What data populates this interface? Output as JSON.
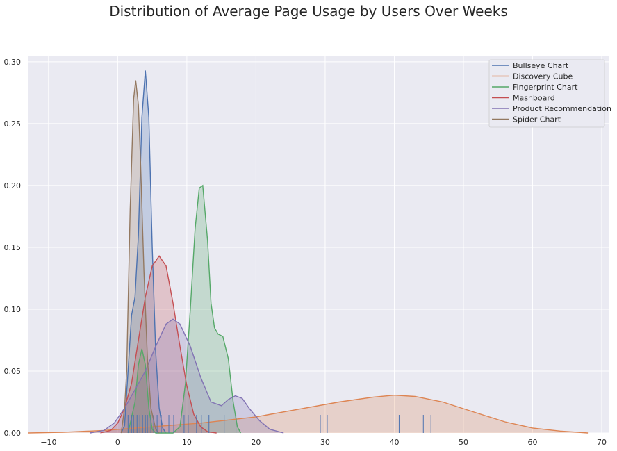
{
  "chart_data": {
    "type": "area",
    "title": "Distribution of Average Page Usage by Users Over Weeks",
    "xlabel": "",
    "ylabel": "",
    "xlim": [
      -13,
      71
    ],
    "ylim": [
      0,
      0.305
    ],
    "x_ticks": [
      -10,
      0,
      10,
      20,
      30,
      40,
      50,
      60,
      70
    ],
    "x_tick_labels": [
      "−10",
      "0",
      "10",
      "20",
      "30",
      "40",
      "50",
      "60",
      "70"
    ],
    "y_ticks": [
      0.0,
      0.05,
      0.1,
      0.15,
      0.2,
      0.25,
      0.3
    ],
    "y_tick_labels": [
      "0.00",
      "0.05",
      "0.10",
      "0.15",
      "0.20",
      "0.25",
      "0.30"
    ],
    "grid": true,
    "legend_position": "top-right",
    "series": [
      {
        "name": "Bullseye Chart",
        "color": "#4c72b0",
        "points": [
          [
            0.5,
            0
          ],
          [
            1,
            0.006
          ],
          [
            1.5,
            0.05
          ],
          [
            2,
            0.095
          ],
          [
            2.5,
            0.11
          ],
          [
            3,
            0.16
          ],
          [
            3.5,
            0.255
          ],
          [
            4,
            0.293
          ],
          [
            4.5,
            0.255
          ],
          [
            5,
            0.15
          ],
          [
            5.5,
            0.065
          ],
          [
            6,
            0.02
          ],
          [
            6.5,
            0.004
          ],
          [
            7,
            0
          ]
        ]
      },
      {
        "name": "Discovery Cube",
        "color": "#dd8452",
        "points": [
          [
            -13,
            0
          ],
          [
            -8,
            0.0005
          ],
          [
            -2,
            0.002
          ],
          [
            5,
            0.005
          ],
          [
            12,
            0.008
          ],
          [
            20,
            0.013
          ],
          [
            26,
            0.019
          ],
          [
            32,
            0.025
          ],
          [
            37,
            0.029
          ],
          [
            40,
            0.0305
          ],
          [
            43,
            0.0295
          ],
          [
            47,
            0.025
          ],
          [
            52,
            0.016
          ],
          [
            56,
            0.009
          ],
          [
            60,
            0.004
          ],
          [
            64,
            0.0015
          ],
          [
            68,
            0
          ]
        ]
      },
      {
        "name": "Fingerprint Chart",
        "color": "#55a868",
        "points": [
          [
            1.5,
            0
          ],
          [
            2.5,
            0.025
          ],
          [
            3,
            0.055
          ],
          [
            3.5,
            0.068
          ],
          [
            4,
            0.055
          ],
          [
            4.5,
            0.02
          ],
          [
            5,
            0.003
          ],
          [
            5.5,
            0
          ],
          [
            8,
            0
          ],
          [
            9,
            0.005
          ],
          [
            9.8,
            0.04
          ],
          [
            10.5,
            0.1
          ],
          [
            11.2,
            0.165
          ],
          [
            11.8,
            0.198
          ],
          [
            12.3,
            0.2
          ],
          [
            13,
            0.155
          ],
          [
            13.5,
            0.105
          ],
          [
            14,
            0.085
          ],
          [
            14.5,
            0.08
          ],
          [
            15.2,
            0.078
          ],
          [
            16,
            0.06
          ],
          [
            16.7,
            0.025
          ],
          [
            17.3,
            0.005
          ],
          [
            17.8,
            0
          ]
        ]
      },
      {
        "name": "Mashboard",
        "color": "#c44e52",
        "points": [
          [
            -2.5,
            0
          ],
          [
            -1,
            0.002
          ],
          [
            0,
            0.008
          ],
          [
            1,
            0.02
          ],
          [
            2,
            0.04
          ],
          [
            3,
            0.075
          ],
          [
            4,
            0.11
          ],
          [
            5,
            0.135
          ],
          [
            6,
            0.143
          ],
          [
            7,
            0.135
          ],
          [
            8,
            0.105
          ],
          [
            9,
            0.07
          ],
          [
            10,
            0.038
          ],
          [
            11,
            0.015
          ],
          [
            12,
            0.005
          ],
          [
            13,
            0.001
          ],
          [
            14.3,
            0
          ]
        ]
      },
      {
        "name": "Product Recommendation",
        "color": "#8172b3",
        "points": [
          [
            -4,
            0
          ],
          [
            -2,
            0.002
          ],
          [
            -0.5,
            0.008
          ],
          [
            1,
            0.02
          ],
          [
            2.5,
            0.035
          ],
          [
            4,
            0.05
          ],
          [
            5.5,
            0.07
          ],
          [
            7,
            0.088
          ],
          [
            8,
            0.092
          ],
          [
            9,
            0.088
          ],
          [
            10.5,
            0.07
          ],
          [
            12,
            0.045
          ],
          [
            13.5,
            0.025
          ],
          [
            15,
            0.022
          ],
          [
            16,
            0.027
          ],
          [
            17,
            0.03
          ],
          [
            18,
            0.028
          ],
          [
            19,
            0.02
          ],
          [
            20.5,
            0.01
          ],
          [
            22,
            0.003
          ],
          [
            24,
            0
          ]
        ]
      },
      {
        "name": "Spider Chart",
        "color": "#937860",
        "points": [
          [
            0.5,
            0
          ],
          [
            1,
            0.02
          ],
          [
            1.3,
            0.05
          ],
          [
            1.8,
            0.18
          ],
          [
            2.3,
            0.27
          ],
          [
            2.6,
            0.285
          ],
          [
            3,
            0.265
          ],
          [
            3.3,
            0.22
          ],
          [
            3.8,
            0.13
          ],
          [
            4.3,
            0.06
          ],
          [
            4.8,
            0.02
          ],
          [
            5.5,
            0.003
          ],
          [
            6,
            0
          ]
        ]
      }
    ],
    "rug": [
      1.5,
      2,
      2.3,
      2.8,
      3.2,
      3.6,
      4,
      4.3,
      4.8,
      5.2,
      5.7,
      6.3,
      7.4,
      8.1,
      9.6,
      10.2,
      11.4,
      12.1,
      13.2,
      15.4,
      17.1,
      29.3,
      30.3,
      40.7,
      44.2,
      45.3
    ]
  }
}
